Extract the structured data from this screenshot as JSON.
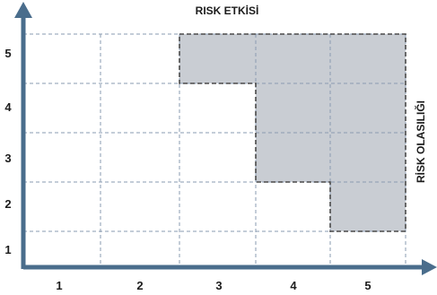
{
  "diagram": {
    "x_title": "RISK ETKİSİ",
    "y_title": "RİSK OLASILIĞI",
    "x_ticks": [
      "1",
      "2",
      "3",
      "4",
      "5"
    ],
    "y_ticks": [
      "1",
      "2",
      "3",
      "4",
      "5"
    ],
    "shaded_cells": [
      [
        3,
        5
      ],
      [
        4,
        5
      ],
      [
        5,
        5
      ],
      [
        4,
        4
      ],
      [
        5,
        4
      ],
      [
        4,
        3
      ],
      [
        5,
        3
      ],
      [
        5,
        2
      ]
    ],
    "colors": {
      "axis": "#4a6d8c",
      "grid": "#8a9bb0",
      "shade": "#c9cdd3",
      "boundary": "#4a4a4a"
    }
  }
}
